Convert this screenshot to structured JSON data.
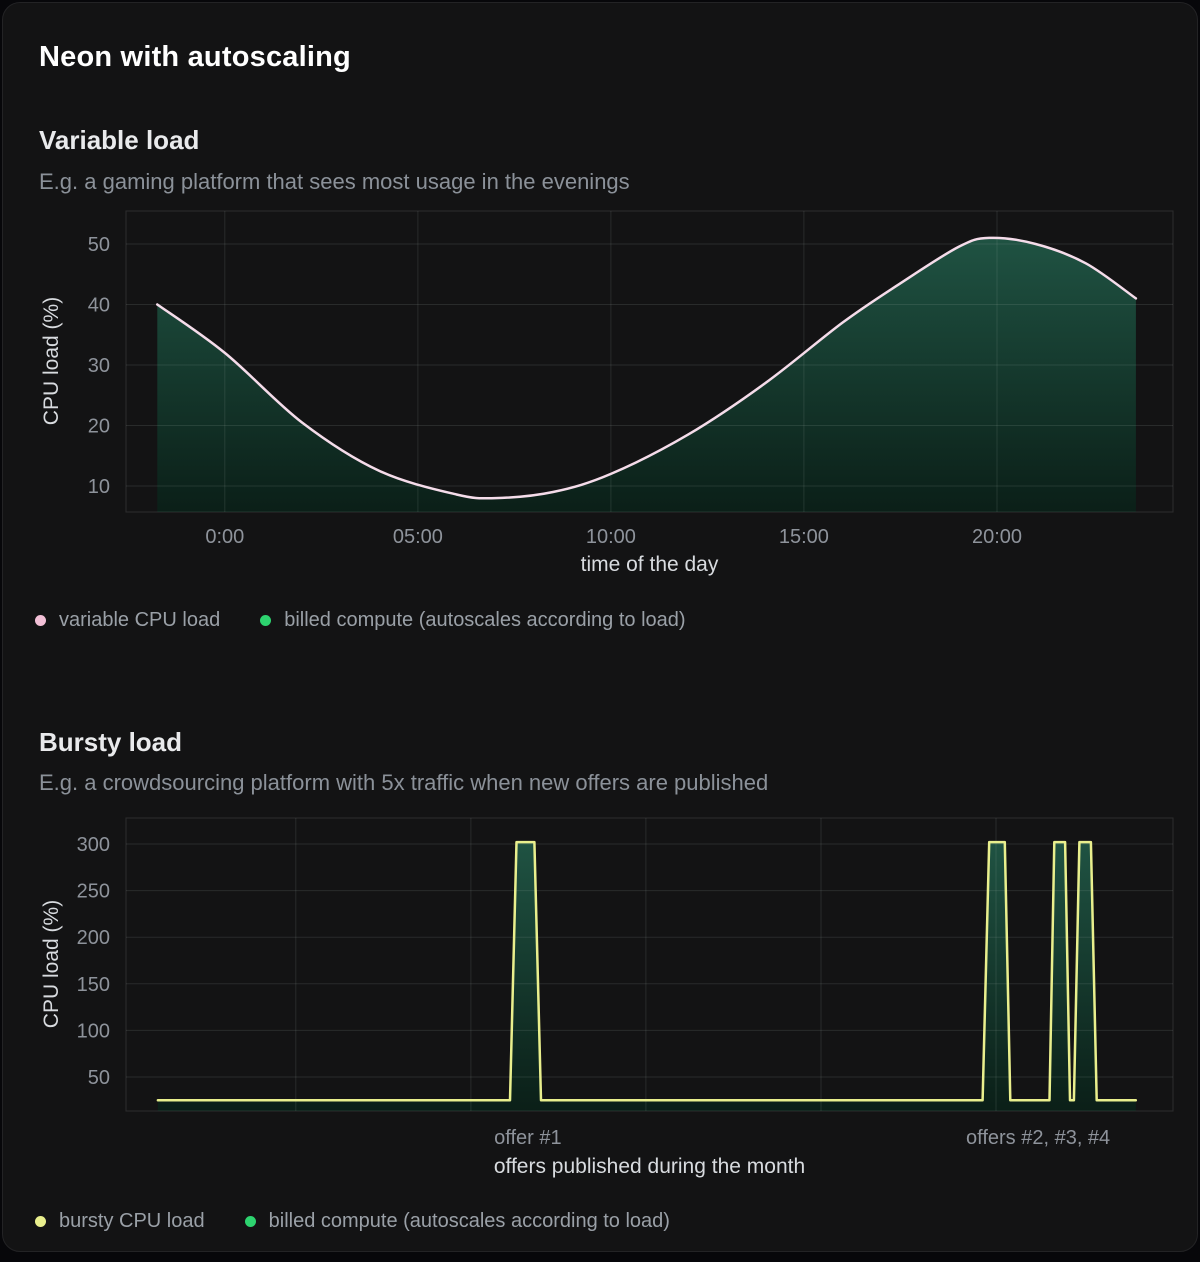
{
  "page": {
    "title": "Neon with autoscaling",
    "background": "#07070a",
    "card_background": "#131314"
  },
  "sections": [
    {
      "heading": "Variable load",
      "subtitle": "E.g. a gaming platform that sees most usage in the evenings",
      "legend": [
        {
          "label": "variable CPU load",
          "color": "#f2c0d7"
        },
        {
          "label": "billed compute (autoscales according to load)",
          "color": "#2dd36f"
        }
      ]
    },
    {
      "heading": "Bursty load",
      "subtitle": "E.g. a crowdsourcing platform with 5x traffic when new offers are published",
      "legend": [
        {
          "label": "bursty CPU load",
          "color": "#e9ef8d"
        },
        {
          "label": "billed compute (autoscales according to load)",
          "color": "#2dd36f"
        }
      ]
    }
  ],
  "chart_data": [
    {
      "type": "area",
      "title": "Variable load",
      "xlabel": "time of the day",
      "ylabel": "CPU load (%)",
      "x_domain": [
        -2.56,
        24.56
      ],
      "y_domain": [
        5.7,
        55.45
      ],
      "xticks": [
        {
          "value": 0,
          "label": "0:00"
        },
        {
          "value": 5,
          "label": "05:00"
        },
        {
          "value": 10,
          "label": "10:00"
        },
        {
          "value": 15,
          "label": "15:00"
        },
        {
          "value": 20,
          "label": "20:00"
        }
      ],
      "yticks": [
        10,
        20,
        30,
        40,
        50
      ],
      "grid": true,
      "legend_position": "bottom",
      "series": [
        {
          "name": "variable CPU load",
          "stroke": "#f5dcea",
          "smooth": true,
          "area_name": "billed compute (autoscales according to load)",
          "fill_gradient": [
            "#205645",
            "#0a2018"
          ],
          "points": [
            [
              -1.75,
              40
            ],
            [
              0,
              32
            ],
            [
              2,
              20.5
            ],
            [
              4,
              12.5
            ],
            [
              6,
              8.6
            ],
            [
              7,
              8
            ],
            [
              8.5,
              9
            ],
            [
              10,
              12
            ],
            [
              12,
              18.5
            ],
            [
              14,
              27
            ],
            [
              16,
              37
            ],
            [
              17.5,
              43.5
            ],
            [
              19,
              49.5
            ],
            [
              19.8,
              51
            ],
            [
              21,
              50
            ],
            [
              22.3,
              46.8
            ],
            [
              23.6,
              41
            ]
          ]
        }
      ]
    },
    {
      "type": "area",
      "title": "Bursty load",
      "xlabel": "offers published during the month",
      "ylabel": "CPU load (%)",
      "x_domain": [
        -0.98,
        31.14
      ],
      "y_domain": [
        13.5,
        327.9
      ],
      "xticks": [
        {
          "value": 11.35,
          "label": "offer #1"
        },
        {
          "value": 27,
          "label": "offers #2, #3, #4"
        }
      ],
      "x_gridlines": [
        4.23,
        9.6,
        14.97,
        20.34,
        25.71
      ],
      "yticks": [
        50,
        100,
        150,
        200,
        250,
        300
      ],
      "grid": true,
      "legend_position": "bottom",
      "series": [
        {
          "name": "bursty CPU load",
          "stroke": "#e9ef8d",
          "smooth": false,
          "area_name": "billed compute (autoscales according to load)",
          "fill_gradient": [
            "#205645",
            "#0a2018"
          ],
          "points": [
            [
              0,
              25
            ],
            [
              10.8,
              25
            ],
            [
              11.0,
              302
            ],
            [
              11.55,
              302
            ],
            [
              11.75,
              25
            ],
            [
              25.3,
              25
            ],
            [
              25.5,
              302
            ],
            [
              25.98,
              302
            ],
            [
              26.15,
              25
            ],
            [
              27.35,
              25
            ],
            [
              27.5,
              302
            ],
            [
              27.83,
              302
            ],
            [
              27.98,
              25
            ],
            [
              28.1,
              25
            ],
            [
              28.27,
              302
            ],
            [
              28.62,
              302
            ],
            [
              28.8,
              25
            ],
            [
              30,
              25
            ]
          ]
        }
      ]
    }
  ],
  "theme": {
    "grid_color": "rgba(170,180,175,0.15)",
    "border_color": "rgba(240,240,240,0.12)",
    "tick_color": "#8e939b",
    "axis_title_color": "#d8dbdf"
  }
}
